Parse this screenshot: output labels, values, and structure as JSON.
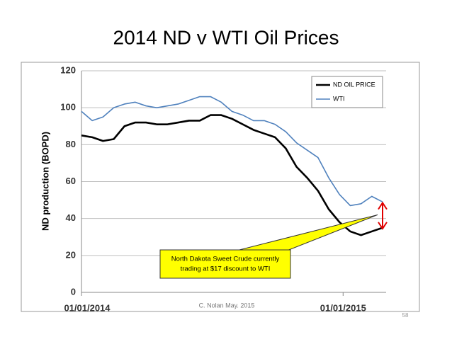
{
  "chart_data": {
    "type": "line",
    "title": "2014 ND v WTI Oil Prices",
    "ylabel": "ND production (BOPD)",
    "x": [
      0,
      15,
      30,
      45,
      60,
      75,
      90,
      105,
      120,
      135,
      150,
      165,
      180,
      195,
      210,
      225,
      240,
      255,
      270,
      285,
      300,
      315,
      330,
      345,
      360,
      375,
      390,
      405,
      420
    ],
    "series": [
      {
        "name": "ND OIL PRICE",
        "color": "#000000",
        "values": [
          85,
          84,
          82,
          83,
          90,
          92,
          92,
          91,
          91,
          92,
          93,
          93,
          96,
          96,
          94,
          91,
          88,
          86,
          84,
          78,
          68,
          62,
          55,
          45,
          38,
          33,
          31,
          33,
          35
        ]
      },
      {
        "name": "WTI",
        "color": "#4f81bd",
        "values": [
          98,
          93,
          95,
          100,
          102,
          103,
          101,
          100,
          101,
          102,
          104,
          106,
          106,
          103,
          98,
          96,
          93,
          93,
          91,
          87,
          81,
          77,
          73,
          62,
          53,
          47,
          48,
          52,
          49
        ]
      }
    ],
    "xlim": [
      0,
      425
    ],
    "xticks": [
      {
        "value": 0,
        "label": "01/01/2014"
      },
      {
        "value": 365,
        "label": "01/01/2015"
      }
    ],
    "ylim": [
      0,
      120
    ],
    "yticks": [
      0,
      20,
      40,
      60,
      80,
      100,
      120
    ],
    "grid": true,
    "legend": "upper right",
    "annotation": [
      "North Dakota Sweet Crude currently",
      "trading at $17 discount to WTI"
    ],
    "footer": "C. Nolan May. 2015",
    "page_number": "58"
  }
}
